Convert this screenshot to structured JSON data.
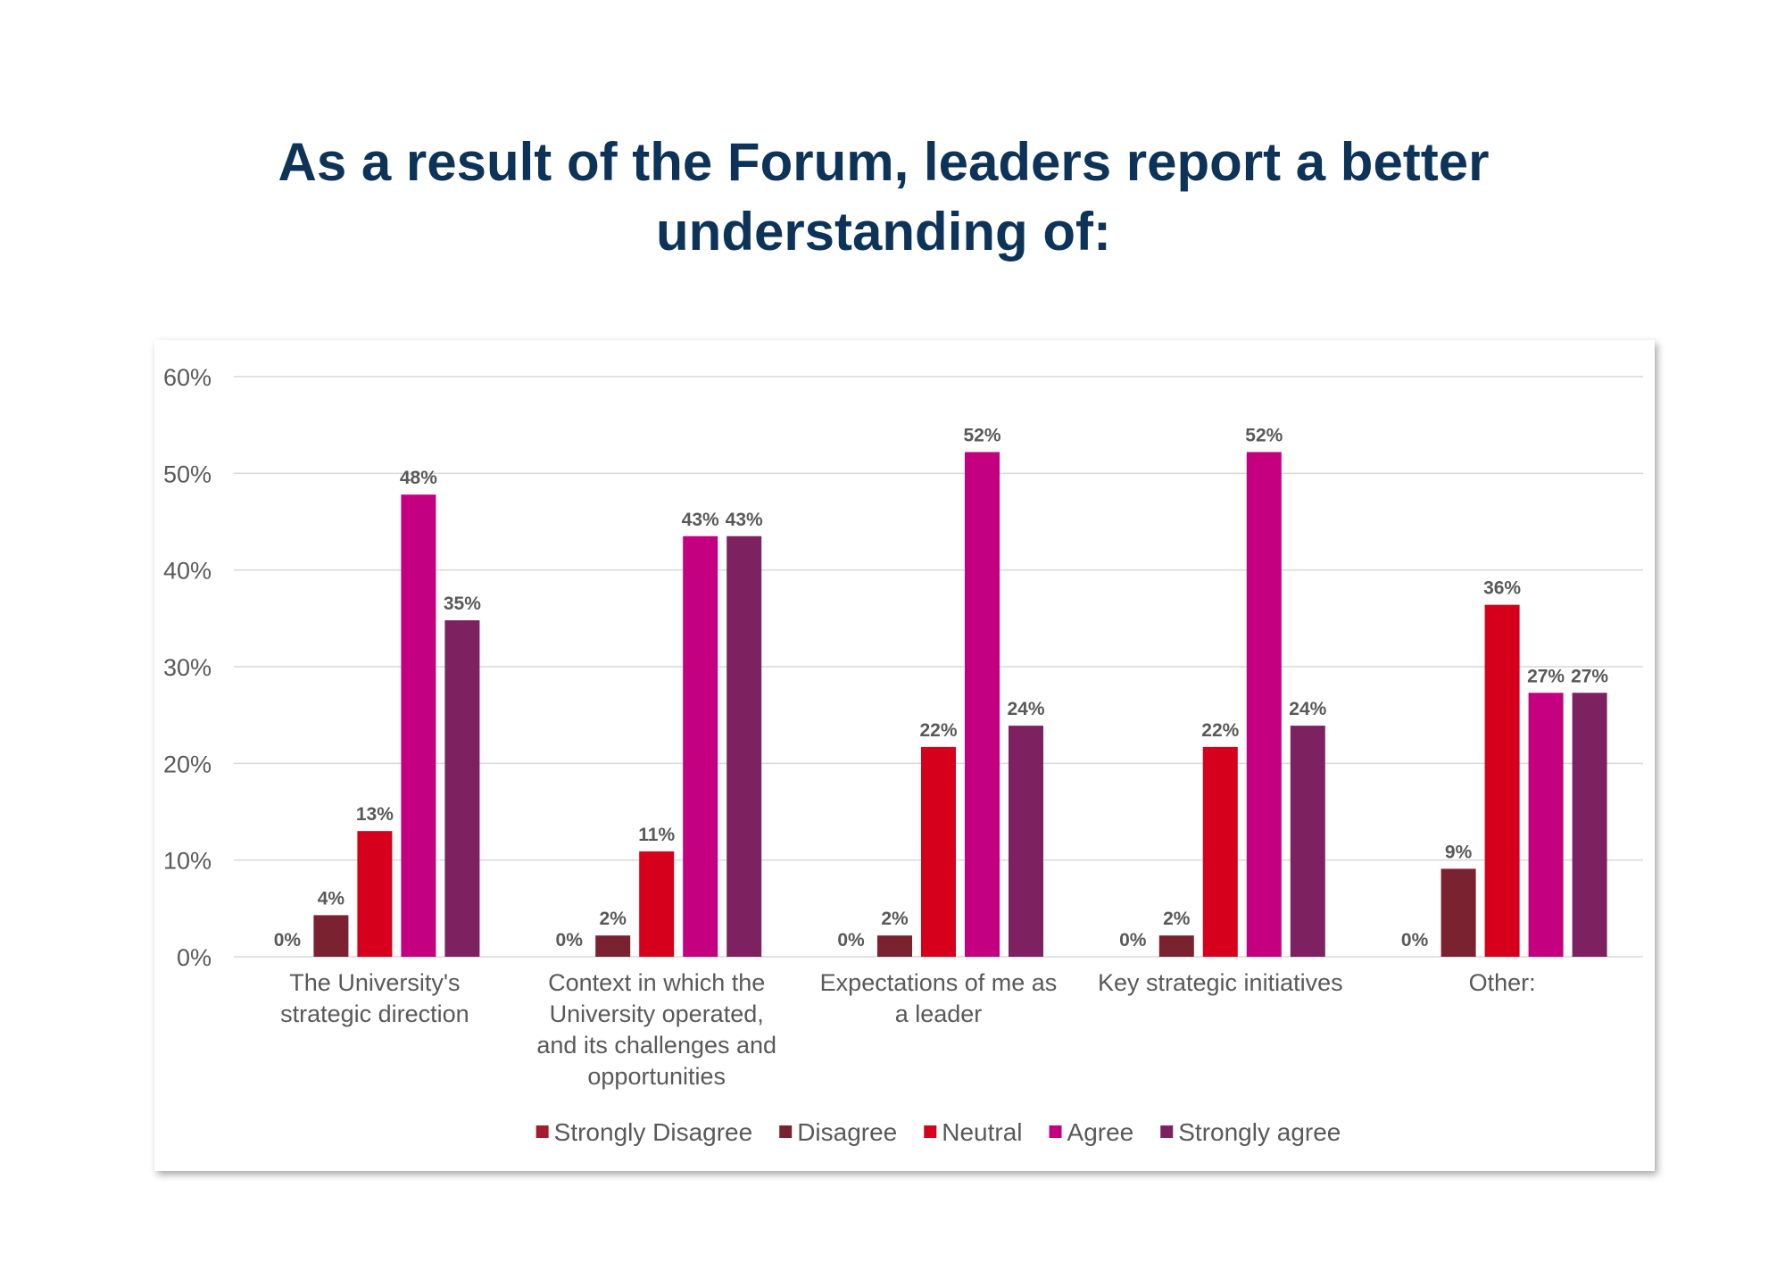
{
  "title_line1": "As a result of the Forum, leaders report a better",
  "title_line2": "understanding of:",
  "chart_data": {
    "type": "bar",
    "categories": [
      [
        "The University's",
        "strategic direction"
      ],
      [
        "Context in which the",
        "University operated,",
        "and its challenges and",
        "opportunities"
      ],
      [
        "Expectations of me as",
        "a leader"
      ],
      [
        "Key strategic initiatives"
      ],
      [
        "Other:"
      ]
    ],
    "series": [
      {
        "name": "Strongly Disagree",
        "color": "#a51c30",
        "values": [
          0,
          0,
          0,
          0,
          0
        ],
        "labels": [
          "0%",
          "0%",
          "0%",
          "0%",
          "0%"
        ]
      },
      {
        "name": "Disagree",
        "color": "#7b2231",
        "values": [
          4.3,
          2.2,
          2.2,
          2.2,
          9.1
        ],
        "labels": [
          "4%",
          "2%",
          "2%",
          "2%",
          "9%"
        ]
      },
      {
        "name": "Neutral",
        "color": "#d6001c",
        "values": [
          13.0,
          10.9,
          21.7,
          21.7,
          36.4
        ],
        "labels": [
          "13%",
          "11%",
          "22%",
          "22%",
          "36%"
        ]
      },
      {
        "name": "Agree",
        "color": "#c40080",
        "values": [
          47.8,
          43.5,
          52.2,
          52.2,
          27.3
        ],
        "labels": [
          "48%",
          "43%",
          "52%",
          "52%",
          "27%"
        ]
      },
      {
        "name": "Strongly agree",
        "color": "#7e2160",
        "values": [
          34.8,
          43.5,
          23.9,
          23.9,
          27.3
        ],
        "labels": [
          "35%",
          "43%",
          "24%",
          "24%",
          "27%"
        ]
      }
    ],
    "yticks": [
      "0%",
      "10%",
      "20%",
      "30%",
      "40%",
      "50%",
      "60%"
    ],
    "ylim": [
      0,
      60
    ],
    "grid": true,
    "legend_position": "bottom"
  }
}
